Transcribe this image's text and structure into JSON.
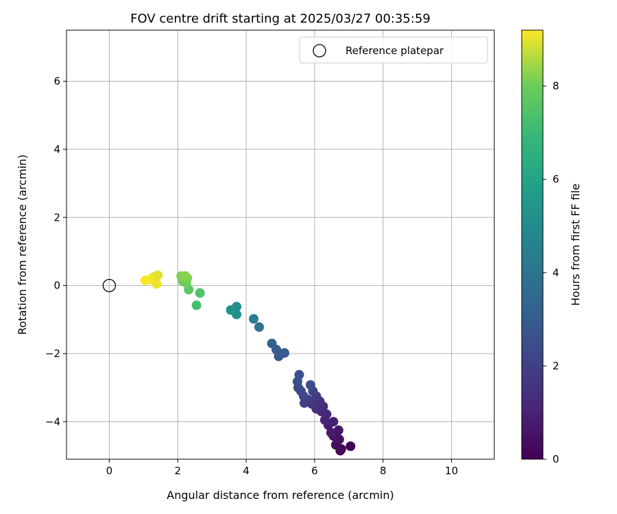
{
  "chart_data": {
    "type": "scatter",
    "title": "FOV centre drift starting at 2025/03/27 00:35:59",
    "xlabel": "Angular distance from reference (arcmin)",
    "ylabel": "Rotation from reference (arcmin)",
    "xlim": [
      -1.25,
      11.25
    ],
    "ylim": [
      -5.1,
      7.5
    ],
    "xticks": [
      0,
      2,
      4,
      6,
      8,
      10
    ],
    "yticks": [
      -4,
      -2,
      0,
      2,
      4,
      6
    ],
    "xtick_labels": [
      "0",
      "2",
      "4",
      "6",
      "8",
      "10"
    ],
    "ytick_labels": [
      "−4",
      "−2",
      "0",
      "2",
      "4",
      "6"
    ],
    "grid": true,
    "legend": {
      "placement": "top-right",
      "entries": [
        "Reference platepar"
      ]
    },
    "reference": {
      "x": 0,
      "y": 0,
      "label": "Reference platepar"
    },
    "colorbar": {
      "label": "Hours from first FF file",
      "colormap": "viridis",
      "range": [
        0,
        9.2
      ],
      "ticks": [
        0,
        2,
        4,
        6,
        8
      ],
      "tick_labels": [
        "0",
        "2",
        "4",
        "6",
        "8"
      ]
    },
    "points": [
      {
        "x": 7.05,
        "y": -4.72,
        "hours": 0.05
      },
      {
        "x": 6.75,
        "y": -4.85,
        "hours": 0.15
      },
      {
        "x": 6.78,
        "y": -4.8,
        "hours": 0.25
      },
      {
        "x": 6.62,
        "y": -4.68,
        "hours": 0.35
      },
      {
        "x": 6.72,
        "y": -4.52,
        "hours": 0.45
      },
      {
        "x": 6.55,
        "y": -4.42,
        "hours": 0.55
      },
      {
        "x": 6.7,
        "y": -4.25,
        "hours": 0.65
      },
      {
        "x": 6.48,
        "y": -4.32,
        "hours": 0.75
      },
      {
        "x": 6.4,
        "y": -4.1,
        "hours": 0.85
      },
      {
        "x": 6.55,
        "y": -4.0,
        "hours": 0.95
      },
      {
        "x": 6.3,
        "y": -3.95,
        "hours": 1.05
      },
      {
        "x": 6.35,
        "y": -3.78,
        "hours": 1.15
      },
      {
        "x": 6.2,
        "y": -3.7,
        "hours": 1.25
      },
      {
        "x": 6.25,
        "y": -3.55,
        "hours": 1.35
      },
      {
        "x": 6.05,
        "y": -3.62,
        "hours": 1.45
      },
      {
        "x": 6.15,
        "y": -3.4,
        "hours": 1.55
      },
      {
        "x": 5.92,
        "y": -3.48,
        "hours": 1.65
      },
      {
        "x": 6.05,
        "y": -3.25,
        "hours": 1.75
      },
      {
        "x": 5.8,
        "y": -3.35,
        "hours": 1.85
      },
      {
        "x": 5.7,
        "y": -3.45,
        "hours": 1.95
      },
      {
        "x": 5.95,
        "y": -3.1,
        "hours": 2.05
      },
      {
        "x": 5.6,
        "y": -3.1,
        "hours": 2.15
      },
      {
        "x": 5.68,
        "y": -3.25,
        "hours": 2.25
      },
      {
        "x": 5.52,
        "y": -3.0,
        "hours": 2.35
      },
      {
        "x": 5.88,
        "y": -2.92,
        "hours": 2.45
      },
      {
        "x": 5.5,
        "y": -2.82,
        "hours": 2.55
      },
      {
        "x": 5.55,
        "y": -2.62,
        "hours": 2.65
      },
      {
        "x": 4.95,
        "y": -2.08,
        "hours": 2.85
      },
      {
        "x": 5.12,
        "y": -1.98,
        "hours": 2.95
      },
      {
        "x": 4.88,
        "y": -1.88,
        "hours": 3.05
      },
      {
        "x": 4.75,
        "y": -1.7,
        "hours": 3.25
      },
      {
        "x": 4.38,
        "y": -1.22,
        "hours": 3.95
      },
      {
        "x": 4.22,
        "y": -0.98,
        "hours": 4.35
      },
      {
        "x": 3.72,
        "y": -0.85,
        "hours": 5.05
      },
      {
        "x": 3.72,
        "y": -0.62,
        "hours": 5.15
      },
      {
        "x": 3.55,
        "y": -0.72,
        "hours": 5.3
      },
      {
        "x": 2.55,
        "y": -0.58,
        "hours": 7.25
      },
      {
        "x": 2.65,
        "y": -0.22,
        "hours": 7.45
      },
      {
        "x": 2.32,
        "y": -0.12,
        "hours": 7.65
      },
      {
        "x": 2.25,
        "y": 0.08,
        "hours": 7.95
      },
      {
        "x": 2.15,
        "y": 0.12,
        "hours": 8.05
      },
      {
        "x": 2.28,
        "y": 0.22,
        "hours": 8.15
      },
      {
        "x": 2.1,
        "y": 0.28,
        "hours": 8.2
      },
      {
        "x": 2.22,
        "y": 0.28,
        "hours": 8.25
      },
      {
        "x": 1.42,
        "y": 0.3,
        "hours": 8.95
      },
      {
        "x": 1.3,
        "y": 0.25,
        "hours": 9.0
      },
      {
        "x": 1.38,
        "y": 0.05,
        "hours": 9.05
      },
      {
        "x": 1.2,
        "y": 0.18,
        "hours": 9.1
      },
      {
        "x": 1.05,
        "y": 0.15,
        "hours": 9.15
      }
    ]
  }
}
